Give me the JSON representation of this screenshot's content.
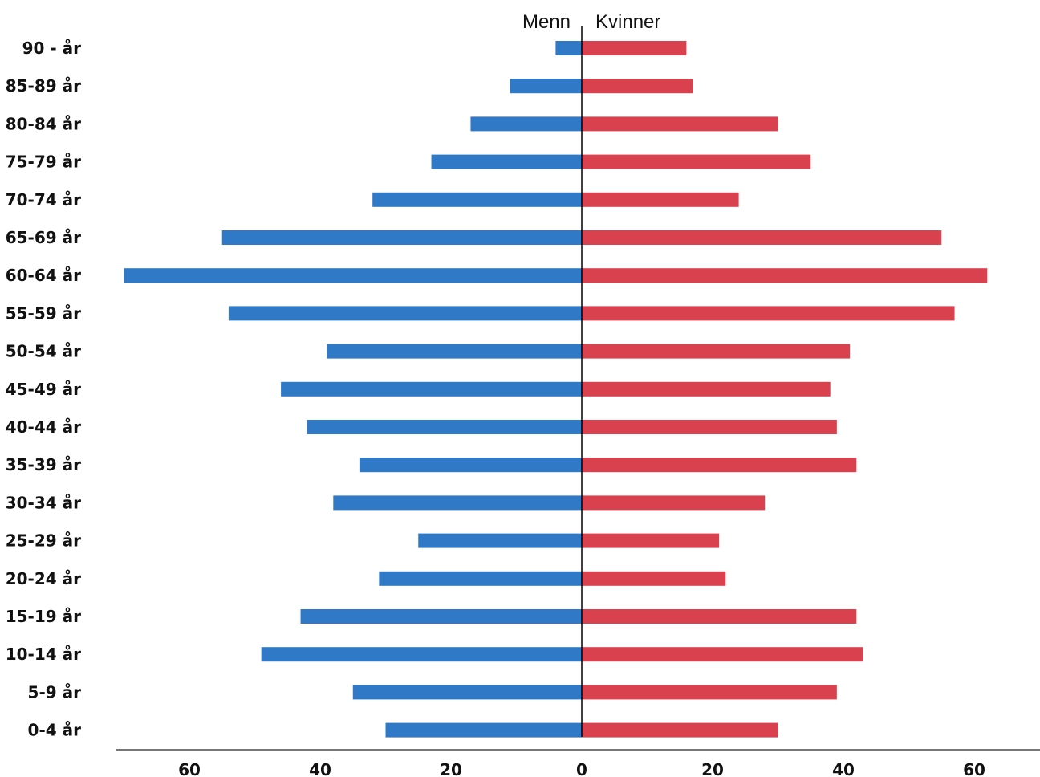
{
  "chart_data": {
    "type": "bar",
    "orientation": "horizontal",
    "layout": "population-pyramid",
    "categories": [
      "90 - år",
      "85-89 år",
      "80-84 år",
      "75-79 år",
      "70-74 år",
      "65-69 år",
      "60-64 år",
      "55-59 år",
      "50-54 år",
      "45-49 år",
      "40-44 år",
      "35-39 år",
      "30-34 år",
      "25-29 år",
      "20-24 år",
      "15-19 år",
      "10-14 år",
      "5-9 år",
      "0-4 år"
    ],
    "series": [
      {
        "name": "Menn",
        "side": "left",
        "color": "#2f79c7",
        "values": [
          4,
          11,
          17,
          23,
          32,
          55,
          70,
          54,
          39,
          46,
          42,
          34,
          38,
          25,
          31,
          43,
          49,
          35,
          30
        ]
      },
      {
        "name": "Kvinner",
        "side": "right",
        "color": "#d9414f",
        "values": [
          16,
          17,
          30,
          35,
          24,
          55,
          62,
          57,
          41,
          38,
          39,
          42,
          28,
          21,
          22,
          42,
          43,
          39,
          30
        ]
      }
    ],
    "x_ticks": [
      {
        "value": -60,
        "label": "60"
      },
      {
        "value": -40,
        "label": "40"
      },
      {
        "value": -20,
        "label": "20"
      },
      {
        "value": 0,
        "label": "0"
      },
      {
        "value": 20,
        "label": "20"
      },
      {
        "value": 40,
        "label": "40"
      },
      {
        "value": 60,
        "label": "60"
      }
    ],
    "xlim": [
      -70,
      70
    ],
    "title": "",
    "xlabel": "",
    "ylabel": "",
    "grid": false,
    "legend_placement": "top-center"
  }
}
